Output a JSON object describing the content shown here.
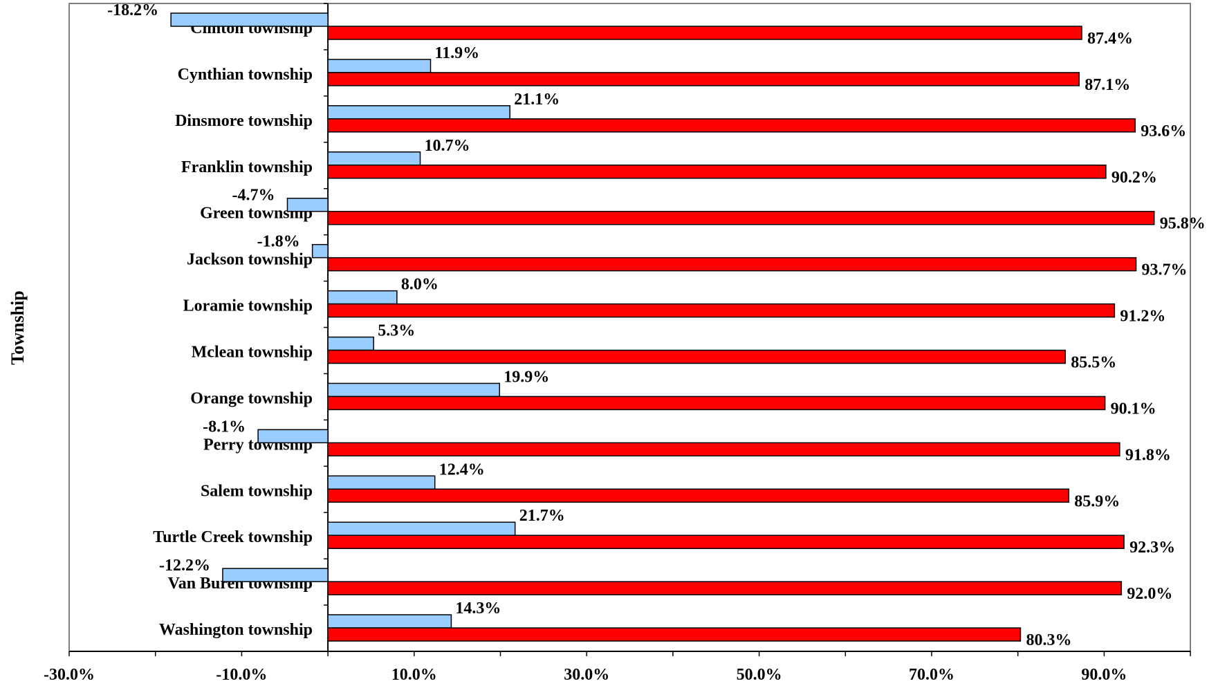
{
  "chart_data": {
    "type": "bar",
    "orientation": "horizontal",
    "ylabel": "Township",
    "xlabel": "",
    "xlim": [
      -30,
      100
    ],
    "x_ticks": [
      "-30.0%",
      "-10.0%",
      "10.0%",
      "30.0%",
      "50.0%",
      "70.0%",
      "90.0%"
    ],
    "categories": [
      "Clinton township",
      "Cynthian township",
      "Dinsmore township",
      "Franklin township",
      "Green township",
      "Jackson township",
      "Loramie township",
      "Mclean township",
      "Orange township",
      "Perry township",
      "Salem township",
      "Turtle Creek township",
      "Van Buren township",
      "Washington township"
    ],
    "series": [
      {
        "color": "#99ccff",
        "values": [
          -18.2,
          11.9,
          21.1,
          10.7,
          -4.7,
          -1.8,
          8.0,
          5.3,
          19.9,
          -8.1,
          12.4,
          21.7,
          -12.2,
          14.3
        ],
        "labels": [
          "-18.2%",
          "11.9%",
          "21.1%",
          "10.7%",
          "-4.7%",
          "-1.8%",
          "8.0%",
          "5.3%",
          "19.9%",
          "-8.1%",
          "12.4%",
          "21.7%",
          "-12.2%",
          "14.3%"
        ]
      },
      {
        "color": "#ff0000",
        "values": [
          87.4,
          87.1,
          93.6,
          90.2,
          95.8,
          93.7,
          91.2,
          85.5,
          90.1,
          91.8,
          85.9,
          92.3,
          92.0,
          80.3
        ],
        "labels": [
          "87.4%",
          "87.1%",
          "93.6%",
          "90.2%",
          "95.8%",
          "93.7%",
          "91.2%",
          "85.5%",
          "90.1%",
          "91.8%",
          "85.9%",
          "92.3%",
          "92.0%",
          "80.3%"
        ]
      }
    ],
    "grid": false,
    "legend": "none"
  }
}
